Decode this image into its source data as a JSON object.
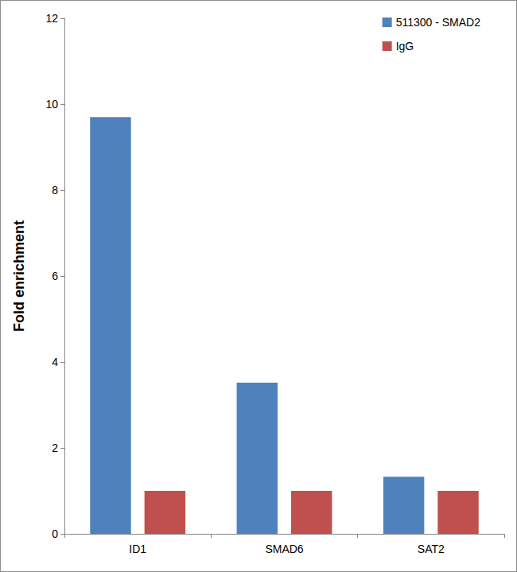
{
  "chart_data": {
    "type": "bar",
    "categories": [
      "ID1",
      "SMAD6",
      "SAT2"
    ],
    "series": [
      {
        "name": "511300 - SMAD2",
        "color": "#4f81bd",
        "values": [
          9.7,
          3.52,
          1.33
        ]
      },
      {
        "name": "IgG",
        "color": "#c0504d",
        "values": [
          1,
          1,
          1
        ]
      }
    ],
    "ylabel": "Fold enrichment",
    "ylim": [
      0,
      12
    ],
    "yticks": [
      0,
      2,
      4,
      6,
      8,
      10,
      12
    ],
    "legend": "upper right",
    "grid": false
  }
}
